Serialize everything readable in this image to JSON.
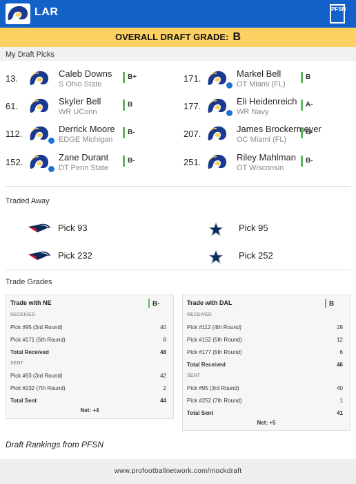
{
  "header": {
    "team": "LAR",
    "brand_logo_text": "PFSN"
  },
  "grade": {
    "label": "OVERALL DRAFT GRADE:",
    "value": "B"
  },
  "sections": {
    "my_picks": "My Draft Picks",
    "traded_away": "Traded Away",
    "trade_grades": "Trade Grades"
  },
  "picks": [
    {
      "number": "13.",
      "name": "Caleb Downs",
      "info": "S Ohio State",
      "grade": "B+",
      "badge": false
    },
    {
      "number": "61.",
      "name": "Skyler Bell",
      "info": "WR UConn",
      "grade": "B",
      "badge": false
    },
    {
      "number": "112.",
      "name": "Derrick Moore",
      "info": "EDGE Michigan",
      "grade": "B-",
      "badge": true
    },
    {
      "number": "152.",
      "name": "Zane Durant",
      "info": "DT Penn State",
      "grade": "B-",
      "badge": true
    },
    {
      "number": "171.",
      "name": "Markel Bell",
      "info": "OT Miami (FL)",
      "grade": "B",
      "badge": true
    },
    {
      "number": "177.",
      "name": "Eli Heidenreich",
      "info": "WR Navy",
      "grade": "A-",
      "badge": true
    },
    {
      "number": "207.",
      "name": "James Brockermeyer",
      "info": "OC Miami (FL)",
      "grade": "B-",
      "badge": false
    },
    {
      "number": "251.",
      "name": "Riley Mahlman",
      "info": "OT Wisconsin",
      "grade": "B-",
      "badge": false
    }
  ],
  "traded_away": [
    {
      "team_icon": "patriots-logo",
      "label": "Pick 93"
    },
    {
      "team_icon": "cowboys-star-logo",
      "label": "Pick 95"
    },
    {
      "team_icon": "patriots-logo",
      "label": "Pick 232"
    },
    {
      "team_icon": "cowboys-star-logo",
      "label": "Pick 252"
    }
  ],
  "trades": [
    {
      "title": "Trade with NE",
      "grade": "B-",
      "received_label": "RECEIVED",
      "received": [
        {
          "label": "Pick #95 (3rd Round)",
          "value": "40"
        },
        {
          "label": "Pick #171 (5th Round)",
          "value": "8"
        }
      ],
      "total_received": {
        "label": "Total Received",
        "value": "48"
      },
      "sent_label": "SENT",
      "sent": [
        {
          "label": "Pick #93 (3rd Round)",
          "value": "42"
        },
        {
          "label": "Pick #232 (7th Round)",
          "value": "2"
        }
      ],
      "total_sent": {
        "label": "Total Sent",
        "value": "44"
      },
      "net": "Net: +4"
    },
    {
      "title": "Trade with DAL",
      "grade": "B",
      "received_label": "RECEIVED",
      "received": [
        {
          "label": "Pick #112 (4th Round)",
          "value": "28"
        },
        {
          "label": "Pick #152 (5th Round)",
          "value": "12"
        },
        {
          "label": "Pick #177 (5th Round)",
          "value": "6"
        }
      ],
      "total_received": {
        "label": "Total Received",
        "value": "46"
      },
      "sent_label": "SENT",
      "sent": [
        {
          "label": "Pick #95 (3rd Round)",
          "value": "40"
        },
        {
          "label": "Pick #252 (7th Round)",
          "value": "1"
        }
      ],
      "total_sent": {
        "label": "Total Sent",
        "value": "41"
      },
      "net": "Net: +5"
    }
  ],
  "attribution": "Draft Rankings from PFSN",
  "footer_url": "www.profootballnetwork.com/mockdraft",
  "colors": {
    "header_blue": "#1460c9",
    "grade_yellow": "#fcd061",
    "grade_green": "#5cb85c",
    "rams_navy": "#1a3a8f"
  }
}
